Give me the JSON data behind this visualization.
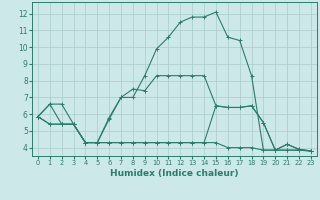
{
  "xlabel": "Humidex (Indice chaleur)",
  "xlim": [
    -0.5,
    23.5
  ],
  "ylim": [
    3.5,
    12.7
  ],
  "xticks": [
    0,
    1,
    2,
    3,
    4,
    5,
    6,
    7,
    8,
    9,
    10,
    11,
    12,
    13,
    14,
    15,
    16,
    17,
    18,
    19,
    20,
    21,
    22,
    23
  ],
  "yticks": [
    4,
    5,
    6,
    7,
    8,
    9,
    10,
    11,
    12
  ],
  "background_color": "#cce8e8",
  "grid_color": "#aacccc",
  "line_color": "#2a7d6e",
  "lines": [
    {
      "x": [
        0,
        1,
        2,
        3,
        4,
        5,
        6,
        7,
        8,
        9,
        10,
        11,
        12,
        13,
        14,
        15,
        16,
        17,
        18,
        19,
        20,
        21,
        22,
        23
      ],
      "y": [
        5.85,
        6.6,
        6.6,
        5.4,
        4.3,
        4.3,
        5.8,
        7.0,
        7.0,
        8.3,
        9.9,
        10.6,
        11.5,
        11.8,
        11.8,
        12.1,
        10.6,
        10.4,
        8.3,
        3.85,
        3.85,
        4.2,
        3.9,
        3.8
      ]
    },
    {
      "x": [
        0,
        1,
        2,
        3,
        4,
        5,
        6,
        7,
        8,
        9,
        10,
        11,
        12,
        13,
        14,
        15,
        16,
        17,
        18,
        19,
        20,
        21,
        22,
        23
      ],
      "y": [
        5.85,
        6.6,
        5.4,
        5.4,
        4.3,
        4.3,
        5.7,
        7.0,
        7.5,
        7.4,
        8.3,
        8.3,
        8.3,
        8.3,
        8.3,
        6.5,
        6.4,
        6.4,
        6.5,
        5.5,
        3.85,
        4.2,
        3.9,
        3.8
      ]
    },
    {
      "x": [
        0,
        1,
        2,
        3,
        4,
        5,
        6,
        7,
        8,
        9,
        10,
        11,
        12,
        13,
        14,
        15,
        16,
        17,
        18,
        19,
        20,
        21,
        22,
        23
      ],
      "y": [
        5.85,
        5.4,
        5.4,
        5.4,
        4.3,
        4.3,
        4.3,
        4.3,
        4.3,
        4.3,
        4.3,
        4.3,
        4.3,
        4.3,
        4.3,
        4.3,
        4.0,
        4.0,
        4.0,
        3.85,
        3.85,
        3.85,
        3.85,
        3.8
      ]
    },
    {
      "x": [
        0,
        1,
        2,
        3,
        4,
        5,
        6,
        7,
        8,
        9,
        10,
        11,
        12,
        13,
        14,
        15,
        16,
        17,
        18,
        19,
        20,
        21,
        22,
        23
      ],
      "y": [
        5.85,
        5.4,
        5.4,
        5.4,
        4.3,
        4.3,
        4.3,
        4.3,
        4.3,
        4.3,
        4.3,
        4.3,
        4.3,
        4.3,
        4.3,
        6.5,
        6.4,
        6.4,
        6.5,
        5.5,
        3.85,
        3.85,
        3.85,
        3.8
      ]
    }
  ]
}
